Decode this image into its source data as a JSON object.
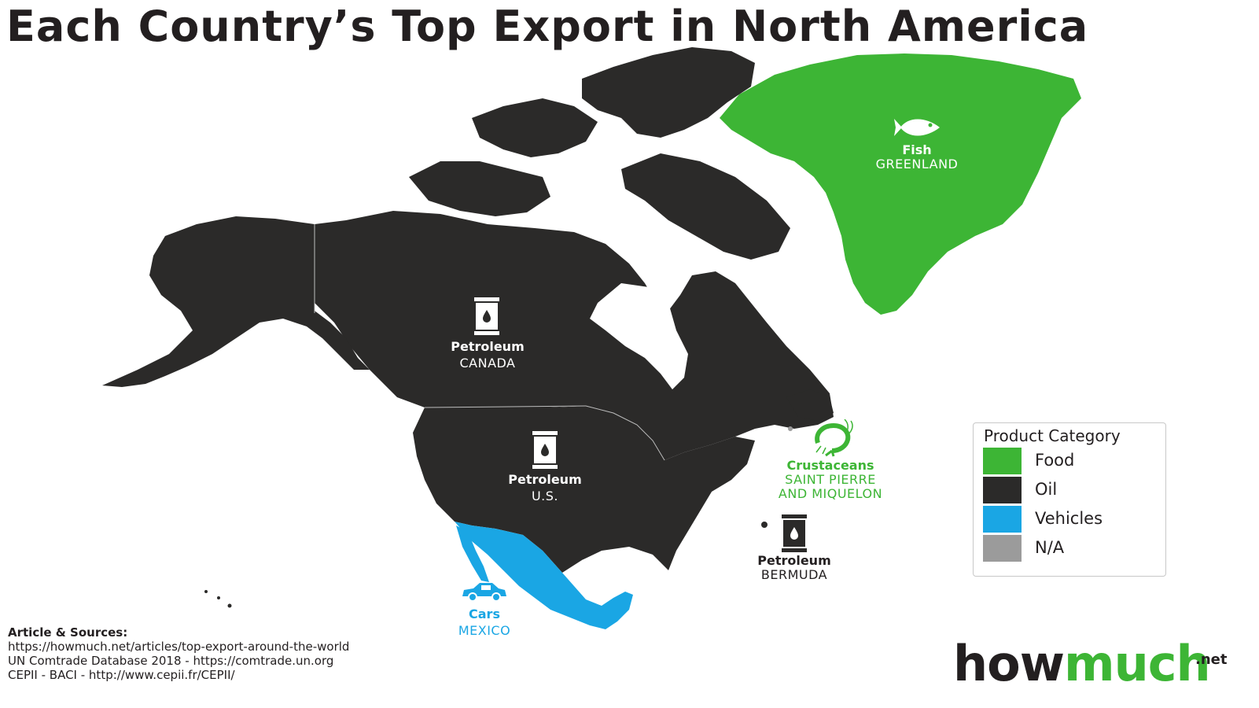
{
  "title": "Each Country’s Top Export in North America",
  "colors": {
    "food": "#3db535",
    "oil": "#2b2a29",
    "vehicles": "#1aa6e4",
    "na": "#9b9b9b",
    "border": "#bdbdbd"
  },
  "regions": [
    {
      "id": "greenland",
      "country": "GREENLAND",
      "product": "Fish",
      "category": "Food",
      "icon": "fish-icon"
    },
    {
      "id": "canada",
      "country": "CANADA",
      "product": "Petroleum",
      "category": "Oil",
      "icon": "oil-barrel-icon"
    },
    {
      "id": "us",
      "country": "U.S.",
      "product": "Petroleum",
      "category": "Oil",
      "icon": "oil-barrel-icon"
    },
    {
      "id": "mexico",
      "country": "MEXICO",
      "product": "Cars",
      "category": "Vehicles",
      "icon": "car-icon"
    },
    {
      "id": "spm",
      "country_line1": "SAINT PIERRE",
      "country_line2": "AND MIQUELON",
      "product": "Crustaceans",
      "category": "Food",
      "icon": "shrimp-icon"
    },
    {
      "id": "bermuda",
      "country": "BERMUDA",
      "product": "Petroleum",
      "category": "Oil",
      "icon": "oil-barrel-icon"
    }
  ],
  "legend": {
    "title": "Product Category",
    "items": [
      {
        "label": "Food",
        "color": "#3db535"
      },
      {
        "label": "Oil",
        "color": "#2b2a29"
      },
      {
        "label": "Vehicles",
        "color": "#1aa6e4"
      },
      {
        "label": "N/A",
        "color": "#9b9b9b"
      }
    ]
  },
  "sources": {
    "heading": "Article & Sources:",
    "lines": [
      "https://howmuch.net/articles/top-export-around-the-world",
      "UN Comtrade Database 2018 - https://comtrade.un.org",
      "CEPII - BACI - http://www.cepii.fr/CEPII/"
    ]
  },
  "logo": {
    "part1": "how",
    "part2": "much",
    "tld": ".net"
  }
}
